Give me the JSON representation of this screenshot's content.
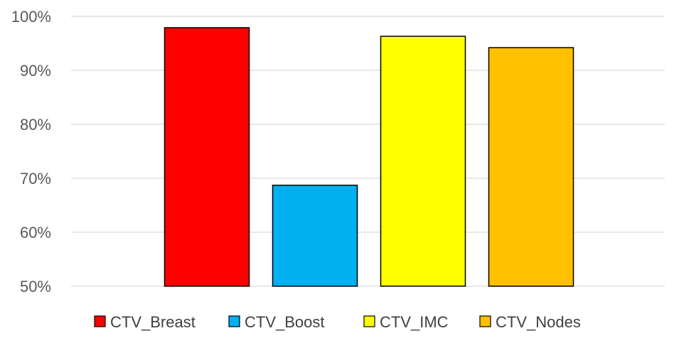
{
  "chart_data": {
    "type": "bar",
    "categories": [
      "CTV_Breast",
      "CTV_Boost",
      "CTV_IMC",
      "CTV_Nodes"
    ],
    "values": [
      97.9,
      68.7,
      96.3,
      94.2
    ],
    "colors": [
      "#ff0000",
      "#00b0f0",
      "#ffff00",
      "#ffc000"
    ],
    "y_ticks": [
      50,
      60,
      70,
      80,
      90,
      100
    ],
    "y_tick_labels": [
      "50%",
      "60%",
      "70%",
      "80%",
      "90%",
      "100%"
    ],
    "ylim": [
      50,
      100
    ],
    "unit": "%",
    "grid": true,
    "legend": {
      "position": "bottom",
      "entries": [
        "CTV_Breast",
        "CTV_Boost",
        "CTV_IMC",
        "CTV_Nodes"
      ]
    }
  }
}
